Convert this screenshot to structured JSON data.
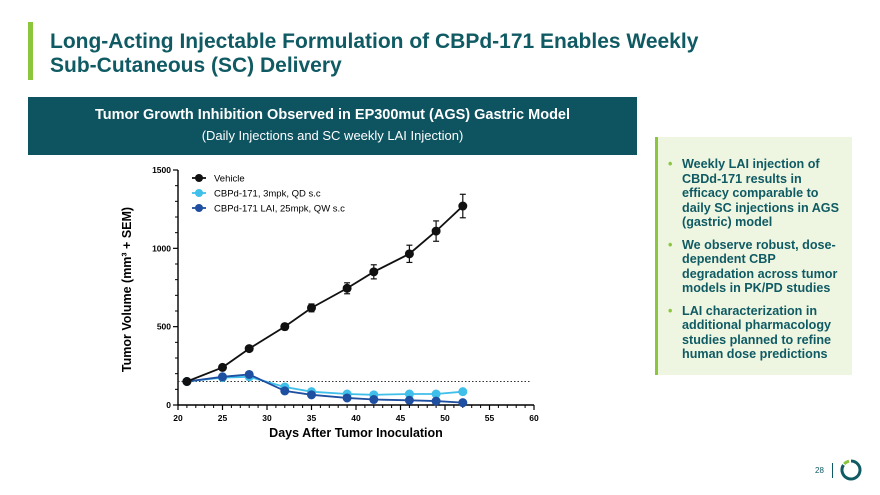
{
  "slide": {
    "title_line1": "Long-Acting Injectable Formulation of CBPd-171 Enables Weekly",
    "title_line2": "Sub-Cutaneous (SC) Delivery",
    "page_number": "28"
  },
  "banner": {
    "title": "Tumor Growth Inhibition Observed in EP300mut (AGS) Gastric Model",
    "subtitle": "(Daily Injections and SC weekly LAI Injection)"
  },
  "sidebar": {
    "bullets": [
      "Weekly LAI injection of CBDd-171 results in efficacy comparable to daily SC injections in AGS (gastric) model",
      "We observe robust, dose-dependent CBP degradation across tumor models in PK/PD studies",
      "LAI characterization in additional pharmacology studies planned to refine human dose predictions"
    ]
  },
  "chart_data": {
    "type": "line",
    "title": "Tumor Growth Inhibition Observed in EP300mut (AGS) Gastric Model",
    "xlabel": "Days After Tumor Inoculation",
    "ylabel": "Tumor Volume (mm³ + SEM)",
    "xlim": [
      20,
      60
    ],
    "ylim": [
      0,
      1500
    ],
    "xticks": [
      20,
      25,
      30,
      35,
      40,
      45,
      50,
      55,
      60
    ],
    "yticks": [
      0,
      500,
      1000,
      1500
    ],
    "reference_line_y": 150,
    "legend_position": "top-left",
    "series": [
      {
        "name": "Vehicle",
        "color": "#111111",
        "x": [
          21,
          25,
          28,
          32,
          35,
          39,
          42,
          46,
          49,
          52
        ],
        "values": [
          150,
          240,
          360,
          500,
          620,
          745,
          850,
          965,
          1110,
          1270
        ],
        "errors": [
          10,
          15,
          15,
          20,
          25,
          35,
          45,
          55,
          65,
          75
        ]
      },
      {
        "name": "CBPd-171, 3mpk, QD s.c",
        "color": "#3fbfea",
        "x": [
          21,
          25,
          28,
          32,
          35,
          39,
          42,
          46,
          49,
          52
        ],
        "values": [
          150,
          175,
          180,
          115,
          85,
          70,
          65,
          70,
          70,
          85
        ],
        "errors": [
          8,
          10,
          10,
          8,
          6,
          6,
          6,
          6,
          6,
          6
        ]
      },
      {
        "name": "CBPd-171 LAI, 25mpk, QW s.c",
        "color": "#1f4fa0",
        "x": [
          21,
          25,
          28,
          32,
          35,
          39,
          42,
          46,
          49,
          52
        ],
        "values": [
          150,
          180,
          195,
          90,
          65,
          45,
          35,
          30,
          25,
          15
        ],
        "errors": [
          8,
          10,
          10,
          8,
          6,
          5,
          5,
          5,
          5,
          4
        ]
      }
    ]
  },
  "colors": {
    "title": "#0f5a63",
    "banner_bg": "#0d5360",
    "accent": "#8cc63f",
    "sidebar_bg": "#eef6e2"
  }
}
